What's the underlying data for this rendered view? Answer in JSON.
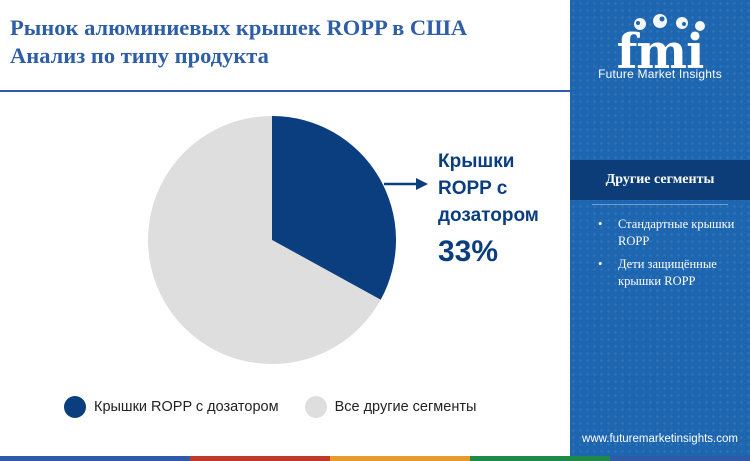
{
  "title": {
    "line1": "Рынок алюминиевых крышек ROPP в США",
    "line2": "Анализ  по типу продукта"
  },
  "chart_data": {
    "type": "pie",
    "categories": [
      "Крышки ROPP с дозатором",
      "Все другие сегменты"
    ],
    "values": [
      33,
      67
    ],
    "unit": "%",
    "colors": [
      "#0b3e7e",
      "#dedede"
    ],
    "callout": {
      "label": "Крышки ROPP с дозатором",
      "value": "33%"
    },
    "legend": {
      "placement": "bottom",
      "entries": [
        "Крышки ROPP с дозатором",
        "Все другие сегменты"
      ]
    }
  },
  "sidebar": {
    "logo_text": "fmi",
    "logo_caption": "Future Market Insights",
    "section_title": "Другие сегменты",
    "items": [
      "Стандартные крышки ROPP",
      "Дети защищённые крышки ROPP"
    ],
    "website": "www.futuremarketinsights.com",
    "background_color": "#1e66b0"
  },
  "bottom_strip_colors": [
    "#2f5aa8",
    "#c0392b",
    "#e59c2a",
    "#1e8a4a",
    "#2f5aa8"
  ]
}
